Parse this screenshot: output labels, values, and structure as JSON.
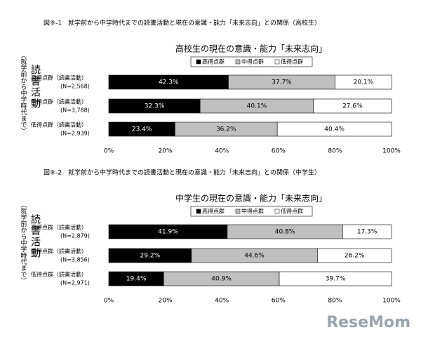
{
  "chart_data": [
    {
      "type": "bar",
      "orientation": "horizontal",
      "stacked": true,
      "figure_title": "図⑨-1　就学前から中学時代までの読書活動と現在の意識・能力「未来志向」との関係（高校生）",
      "title": "高校生の現在の意識・能力「未来志向」",
      "y_label": "読書活動",
      "y_sublabel": "（就学前から中学時代まで）",
      "categories": [
        "高得点群（読書活動）",
        "中得点群（読書活動）",
        "低得点群（読書活動）"
      ],
      "category_notes": [
        "(N=2,568)",
        "(N=3,788)",
        "(N=2,939)"
      ],
      "series": [
        {
          "name": "高得点群",
          "color": "#000000",
          "values": [
            42.3,
            32.3,
            23.4
          ],
          "value_labels": [
            "42.3%",
            "32.3%",
            "23.4%"
          ]
        },
        {
          "name": "中得点群",
          "color": "#bfbfbf",
          "values": [
            37.7,
            40.1,
            36.2
          ],
          "value_labels": [
            "37.7%",
            "40.1%",
            "36.2%"
          ]
        },
        {
          "name": "低得点群",
          "color": "#ffffff",
          "values": [
            20.1,
            27.6,
            40.4
          ],
          "value_labels": [
            "20.1%",
            "27.6%",
            "40.4%"
          ]
        }
      ],
      "xlim": [
        0,
        100
      ],
      "xticks": [
        {
          "value": 0,
          "label": "0%"
        },
        {
          "value": 20,
          "label": "20%"
        },
        {
          "value": 40,
          "label": "40%"
        },
        {
          "value": 60,
          "label": "60%"
        },
        {
          "value": 80,
          "label": "80%"
        },
        {
          "value": 100,
          "label": "100%"
        }
      ],
      "legend": "top"
    },
    {
      "type": "bar",
      "orientation": "horizontal",
      "stacked": true,
      "figure_title": "図⑨-2　就学前から中学時代までの読書活動と現在の意識・能力「未来志向」との関係（中学生）",
      "title": "中学生の現在の意識・能力「未来志向」",
      "y_label": "読書活動",
      "y_sublabel": "（就学前から中学時代まで）",
      "categories": [
        "高得点群（読書活動）",
        "中得点群（読書活動）",
        "低得点群（読書活動）"
      ],
      "category_notes": [
        "(N=2,879)",
        "(N=3,856)",
        "(N=2,971)"
      ],
      "series": [
        {
          "name": "高得点群",
          "color": "#000000",
          "values": [
            41.9,
            29.2,
            19.4
          ],
          "value_labels": [
            "41.9%",
            "29.2%",
            "19.4%"
          ]
        },
        {
          "name": "中得点群",
          "color": "#bfbfbf",
          "values": [
            40.8,
            44.6,
            40.9
          ],
          "value_labels": [
            "40.8%",
            "44.6%",
            "40.9%"
          ]
        },
        {
          "name": "低得点群",
          "color": "#ffffff",
          "values": [
            17.3,
            26.2,
            39.7
          ],
          "value_labels": [
            "17.3%",
            "26.2%",
            "39.7%"
          ]
        }
      ],
      "xlim": [
        0,
        100
      ],
      "xticks": [
        {
          "value": 0,
          "label": "0%"
        },
        {
          "value": 20,
          "label": "20%"
        },
        {
          "value": 40,
          "label": "40%"
        },
        {
          "value": 60,
          "label": "60%"
        },
        {
          "value": 80,
          "label": "80%"
        },
        {
          "value": 100,
          "label": "100%"
        }
      ],
      "legend": "top"
    }
  ],
  "watermark": "ReseMom"
}
